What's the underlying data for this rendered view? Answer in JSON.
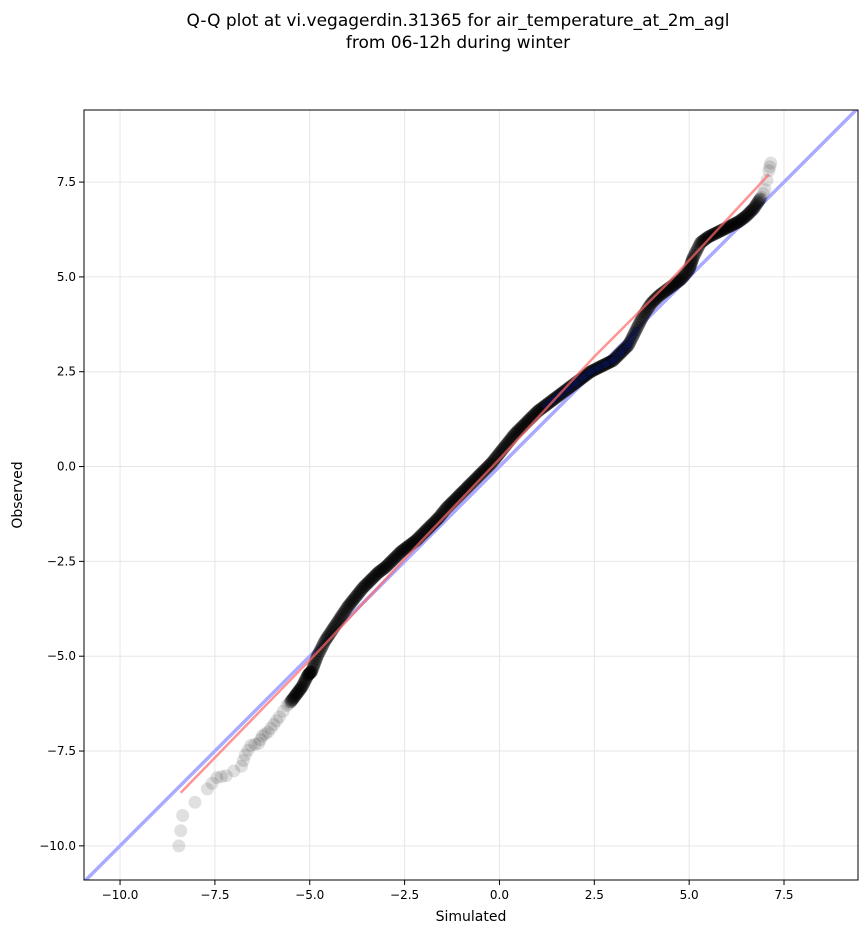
{
  "chart_data": {
    "type": "scatter",
    "title": "Q-Q plot at vi.vegagerdin.31365 for air_temperature_at_2m_agl",
    "subtitle": "from 06-12h during winter",
    "xlabel": "Simulated",
    "ylabel": "Observed",
    "xlim": [
      -10.95,
      9.45
    ],
    "ylim": [
      -10.9,
      9.4
    ],
    "grid": true,
    "xticks": [
      -10.0,
      -7.5,
      -5.0,
      -2.5,
      0.0,
      2.5,
      5.0,
      7.5
    ],
    "yticks": [
      -10.0,
      -7.5,
      -5.0,
      -2.5,
      0.0,
      2.5,
      5.0,
      7.5
    ],
    "xtick_labels": [
      "−10.0",
      "−7.5",
      "−5.0",
      "−2.5",
      "0.0",
      "2.5",
      "5.0",
      "7.5"
    ],
    "ytick_labels": [
      "−10.0",
      "−7.5",
      "−5.0",
      "−2.5",
      "0.0",
      "2.5",
      "5.0",
      "7.5"
    ],
    "colors": {
      "points": "#000000",
      "identity_line": "#aaaaff",
      "fit_line": "#ff6666",
      "dense_band": "#0a1450",
      "grid": "#e6e6e6"
    },
    "identity_line": [
      [
        -10.95,
        -10.95
      ],
      [
        9.45,
        9.45
      ]
    ],
    "fit_line": [
      [
        -8.4,
        -8.6
      ],
      [
        -4.8,
        -4.9
      ],
      [
        -2.0,
        -1.9
      ],
      [
        0.0,
        0.2
      ],
      [
        2.5,
        2.9
      ],
      [
        4.5,
        4.9
      ],
      [
        7.1,
        7.7
      ]
    ],
    "quantiles": {
      "x": [
        -8.45,
        -8.35,
        -7.7,
        -7.45,
        -7.2,
        -6.8,
        -6.7,
        -6.55,
        -6.35,
        -6.25,
        -6.1,
        -5.95,
        -5.8,
        -5.6,
        -5.5,
        -5.35,
        -5.2,
        -5.05,
        -4.95,
        -4.8,
        -4.6,
        -4.4,
        -4.2,
        -4.0,
        -3.8,
        -3.6,
        -3.4,
        -3.2,
        -3.0,
        -2.8,
        -2.6,
        -2.4,
        -2.2,
        -2.0,
        -1.8,
        -1.6,
        -1.4,
        -1.2,
        -1.0,
        -0.8,
        -0.6,
        -0.4,
        -0.2,
        0.0,
        0.2,
        0.4,
        0.6,
        0.8,
        1.0,
        1.2,
        1.4,
        1.6,
        1.8,
        2.0,
        2.2,
        2.4,
        2.6,
        2.8,
        3.0,
        3.2,
        3.4,
        3.6,
        3.8,
        4.0,
        4.2,
        4.4,
        4.6,
        4.8,
        5.0,
        5.1,
        5.3,
        5.5,
        5.7,
        5.9,
        6.1,
        6.3,
        6.5,
        6.7,
        6.9,
        7.0,
        7.1,
        7.15
      ],
      "y": [
        -10.0,
        -9.2,
        -8.5,
        -8.2,
        -8.15,
        -7.9,
        -7.6,
        -7.35,
        -7.3,
        -7.1,
        -7.0,
        -6.8,
        -6.6,
        -6.3,
        -6.2,
        -6.0,
        -5.8,
        -5.5,
        -5.4,
        -5.0,
        -4.6,
        -4.3,
        -4.0,
        -3.7,
        -3.45,
        -3.2,
        -3.0,
        -2.8,
        -2.65,
        -2.45,
        -2.25,
        -2.1,
        -1.95,
        -1.75,
        -1.55,
        -1.35,
        -1.1,
        -0.9,
        -0.7,
        -0.5,
        -0.3,
        -0.1,
        0.1,
        0.35,
        0.6,
        0.85,
        1.05,
        1.25,
        1.45,
        1.6,
        1.75,
        1.9,
        2.05,
        2.2,
        2.35,
        2.5,
        2.6,
        2.7,
        2.8,
        3.0,
        3.2,
        3.6,
        4.0,
        4.3,
        4.5,
        4.65,
        4.8,
        4.95,
        5.2,
        5.5,
        5.9,
        6.05,
        6.15,
        6.25,
        6.35,
        6.45,
        6.6,
        6.8,
        7.1,
        7.3,
        7.8,
        8.0
      ]
    }
  }
}
